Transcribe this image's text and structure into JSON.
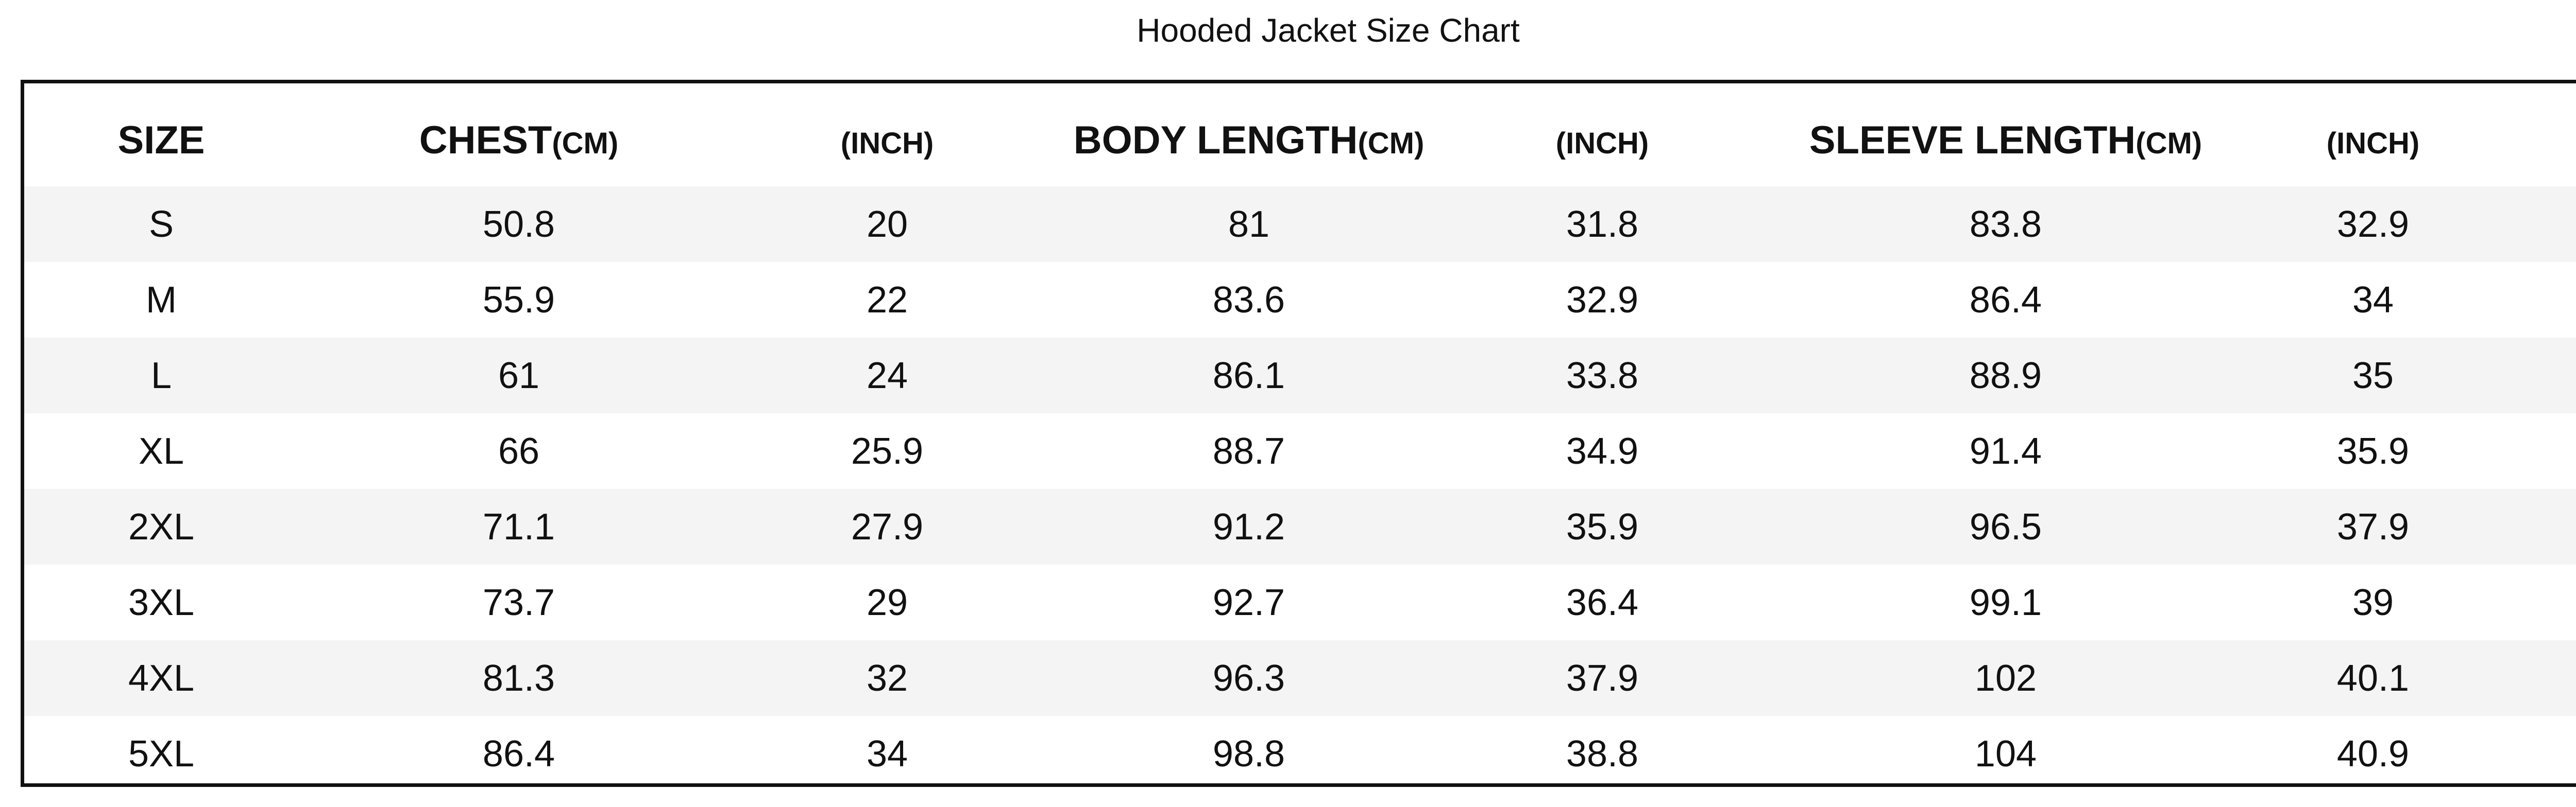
{
  "title": "Hooded Jacket Size Chart",
  "table": {
    "header": [
      {
        "main": "SIZE",
        "unit": ""
      },
      {
        "main": "CHEST",
        "unit": "(CM)"
      },
      {
        "main": "",
        "unit": "(INCH)"
      },
      {
        "main": "BODY LENGTH",
        "unit": "(CM)"
      },
      {
        "main": "",
        "unit": "(INCH)"
      },
      {
        "main": "SLEEVE LENGTH",
        "unit": "(CM)"
      },
      {
        "main": "",
        "unit": "(INCH)"
      }
    ],
    "rows": [
      [
        "S",
        "50.8",
        "20",
        "81",
        "31.8",
        "83.8",
        "32.9"
      ],
      [
        "M",
        "55.9",
        "22",
        "83.6",
        "32.9",
        "86.4",
        "34"
      ],
      [
        "L",
        "61",
        "24",
        "86.1",
        "33.8",
        "88.9",
        "35"
      ],
      [
        "XL",
        "66",
        "25.9",
        "88.7",
        "34.9",
        "91.4",
        "35.9"
      ],
      [
        "2XL",
        "71.1",
        "27.9",
        "91.2",
        "35.9",
        "96.5",
        "37.9"
      ],
      [
        "3XL",
        "73.7",
        "29",
        "92.7",
        "36.4",
        "99.1",
        "39"
      ],
      [
        "4XL",
        "81.3",
        "32",
        "96.3",
        "37.9",
        "102",
        "40.1"
      ],
      [
        "5XL",
        "86.4",
        "34",
        "98.8",
        "38.8",
        "104",
        "40.9"
      ]
    ]
  },
  "colors": {
    "border": "#111111",
    "band": "#f4f4f4",
    "text": "#111111"
  }
}
